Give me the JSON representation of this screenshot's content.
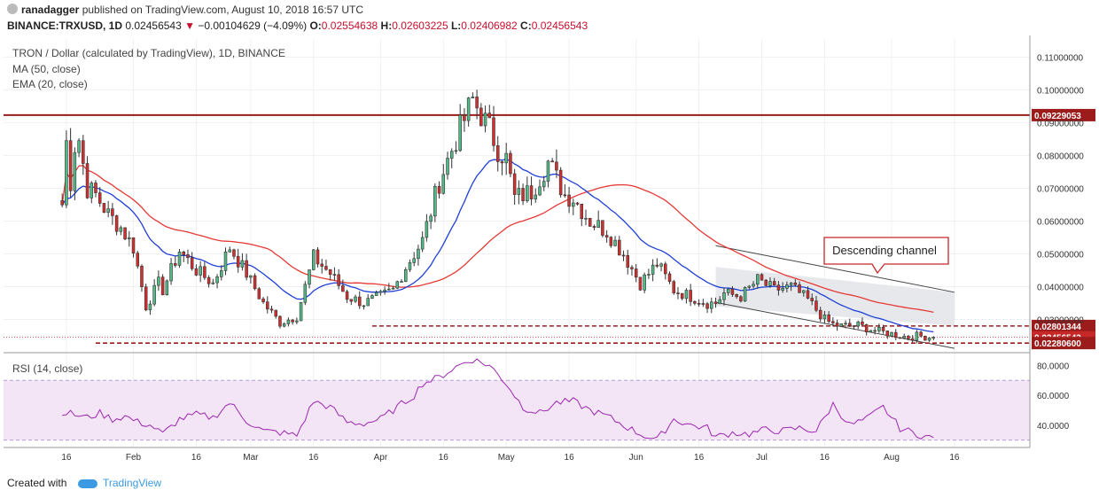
{
  "header": {
    "author": "ranadagger",
    "published": "published on TradingView.com, August 10, 2018 16:57 UTC",
    "symbol_line": "BINANCE:TRXUSD, 1D",
    "last_price": "0.02456543",
    "change": "−0.00104629 (−4.09%)",
    "o_label": "O:",
    "o": "0.02554638",
    "h_label": "H:",
    "h": "0.02603225",
    "l_label": "L:",
    "l": "0.02406982",
    "c_label": "C:",
    "c": "0.02456543"
  },
  "legend": {
    "title": "TRON / Dollar (calculated by TradingView), 1D, BINANCE",
    "ma": "MA (50, close)",
    "ema": "EMA (20, close)",
    "rsi": "RSI (14, close)"
  },
  "annotation": {
    "text": "Descending channel"
  },
  "footer": {
    "created": "Created with",
    "brand": "TradingView"
  },
  "colors": {
    "up": "#26a69a",
    "up_fill": "#53b987",
    "down": "#c62828",
    "down_fill": "#d32f2f",
    "ma": "#e53935",
    "ema": "#1e3fd7",
    "rsi": "#9c27b0",
    "rsi_band": "#f3e5f5",
    "resistance": "#9c1c1c",
    "support": "#9c1c1c",
    "channel_fill": "#e3e6ea"
  },
  "chart_data": {
    "type": "candlestick",
    "price_axis": {
      "ticks": [
        "0.11000000",
        "0.10000000",
        "0.09000000",
        "0.08000000",
        "0.07000000",
        "0.06000000",
        "0.05000000",
        "0.04000000",
        "0.03000000"
      ],
      "tick_values": [
        0.11,
        0.1,
        0.09,
        0.08,
        0.07,
        0.06,
        0.05,
        0.04,
        0.03
      ],
      "ylim": [
        0.0215,
        0.1155
      ]
    },
    "rsi_axis": {
      "ticks": [
        "80.0000",
        "60.0000",
        "40.0000"
      ],
      "tick_values": [
        80,
        60,
        40
      ],
      "ylim": [
        25,
        85
      ]
    },
    "time_axis": {
      "labels": [
        "16",
        "Feb",
        "16",
        "Mar",
        "16",
        "Apr",
        "16",
        "May",
        "16",
        "Jun",
        "16",
        "Jul",
        "16",
        "Aug",
        "16"
      ],
      "label_days": [
        15,
        31,
        46,
        59,
        74,
        90,
        105,
        120,
        135,
        151,
        166,
        181,
        196,
        212,
        227
      ]
    },
    "levels": [
      {
        "label": "0.09229053",
        "value": 0.09229053,
        "style": "solid"
      },
      {
        "label": "0.02801344",
        "value": 0.02801344,
        "style": "dashed"
      },
      {
        "label": "0.02456543",
        "value": 0.02456543,
        "style": "last"
      },
      {
        "label": "0.02280600",
        "value": 0.022806,
        "style": "dashed"
      }
    ],
    "channel": {
      "upper": [
        [
          0.0525,
          0.0
        ],
        [
          0.0383,
          1.0
        ]
      ],
      "lower": [
        [
          0.0352,
          0.0
        ],
        [
          0.0212,
          1.0
        ]
      ],
      "day_start": 170,
      "day_end": 227
    },
    "anchors": {
      "days": [
        14,
        15,
        16,
        17,
        18,
        20,
        22,
        25,
        28,
        31,
        34,
        37,
        38,
        42,
        46,
        50,
        54,
        58,
        62,
        66,
        70,
        74,
        78,
        82,
        86,
        90,
        93,
        96,
        100,
        104,
        108,
        112,
        116,
        118,
        120,
        122,
        126,
        130,
        134,
        136,
        140,
        144,
        148,
        152,
        156,
        160,
        164,
        168,
        170,
        172,
        176,
        180,
        184,
        188,
        192,
        196,
        198,
        200,
        204,
        208,
        212,
        216,
        218,
        220,
        222
      ],
      "close": [
        0.065,
        0.084,
        0.072,
        0.083,
        0.085,
        0.07,
        0.068,
        0.062,
        0.058,
        0.052,
        0.034,
        0.041,
        0.039,
        0.051,
        0.045,
        0.041,
        0.052,
        0.044,
        0.035,
        0.029,
        0.031,
        0.049,
        0.044,
        0.037,
        0.035,
        0.037,
        0.039,
        0.046,
        0.054,
        0.072,
        0.085,
        0.097,
        0.088,
        0.082,
        0.079,
        0.067,
        0.069,
        0.078,
        0.068,
        0.067,
        0.06,
        0.057,
        0.05,
        0.041,
        0.047,
        0.039,
        0.037,
        0.035,
        0.035,
        0.038,
        0.037,
        0.042,
        0.039,
        0.04,
        0.036,
        0.03,
        0.0285,
        0.028,
        0.0282,
        0.0266,
        0.0256,
        0.0246,
        0.025,
        0.0248,
        0.0245
      ]
    },
    "rsi": {
      "days": [
        14,
        17,
        20,
        23,
        26,
        29,
        32,
        35,
        38,
        42,
        46,
        50,
        54,
        58,
        62,
        66,
        70,
        74,
        78,
        82,
        86,
        90,
        94,
        98,
        100,
        104,
        108,
        110,
        112,
        116,
        120,
        124,
        128,
        132,
        136,
        140,
        144,
        148,
        152,
        156,
        160,
        164,
        168,
        170,
        174,
        178,
        182,
        186,
        190,
        194,
        198,
        202,
        206,
        210,
        214,
        218,
        222
      ],
      "values": [
        49,
        47,
        45,
        48,
        44,
        46,
        42,
        40,
        34,
        44,
        47,
        45,
        55,
        43,
        36,
        35,
        33,
        56,
        52,
        42,
        41,
        44,
        52,
        60,
        68,
        72,
        79,
        82,
        84,
        80,
        68,
        52,
        48,
        55,
        56,
        50,
        46,
        40,
        34,
        30,
        44,
        40,
        38,
        32,
        35,
        34,
        37,
        36,
        38,
        36,
        54,
        40,
        44,
        52,
        38,
        34,
        31
      ]
    }
  }
}
